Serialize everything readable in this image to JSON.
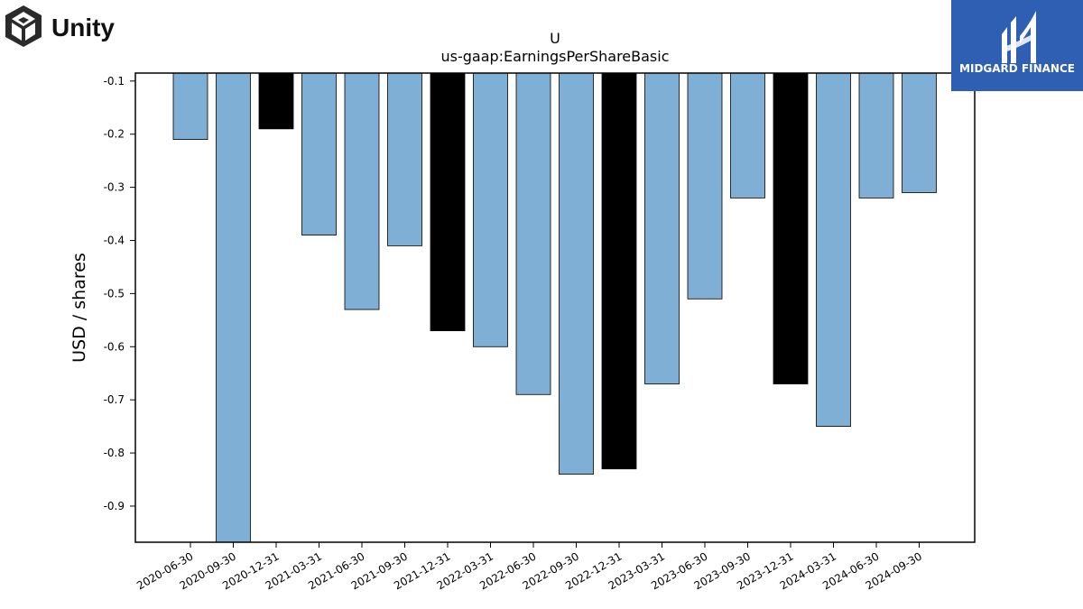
{
  "brand": {
    "left_logo_text": "Unity",
    "right_logo_text": "MIDGARD FINANCE",
    "right_logo_bg": "#2f5fb2"
  },
  "chart_data": {
    "type": "bar",
    "title": "U",
    "subtitle": "us-gaap:EarningsPerShareBasic",
    "xlabel": "",
    "ylabel": "USD / shares",
    "ylim": [
      -0.968,
      -0.085
    ],
    "yticks": [
      -0.1,
      -0.2,
      -0.3,
      -0.4,
      -0.5,
      -0.6,
      -0.7,
      -0.8,
      -0.9
    ],
    "categories": [
      "2020-06-30",
      "2020-09-30",
      "2020-12-31",
      "2021-03-31",
      "2021-06-30",
      "2021-09-30",
      "2021-12-31",
      "2022-03-31",
      "2022-06-30",
      "2022-09-30",
      "2022-12-31",
      "2023-03-31",
      "2023-06-30",
      "2023-09-30",
      "2023-12-31",
      "2024-03-31",
      "2024-06-30",
      "2024-09-30"
    ],
    "values": [
      -0.21,
      -0.97,
      -0.19,
      -0.39,
      -0.53,
      -0.41,
      -0.57,
      -0.6,
      -0.69,
      -0.84,
      -0.83,
      -0.67,
      -0.51,
      -0.32,
      -0.67,
      -0.75,
      -0.32,
      -0.31
    ],
    "highlight": [
      false,
      false,
      true,
      false,
      false,
      false,
      true,
      false,
      false,
      false,
      true,
      false,
      false,
      false,
      true,
      false,
      false,
      false
    ],
    "colors": {
      "default": "#7fafd4",
      "highlight": "#000000",
      "edge": "#000000"
    },
    "grid": false,
    "legend": "none"
  }
}
